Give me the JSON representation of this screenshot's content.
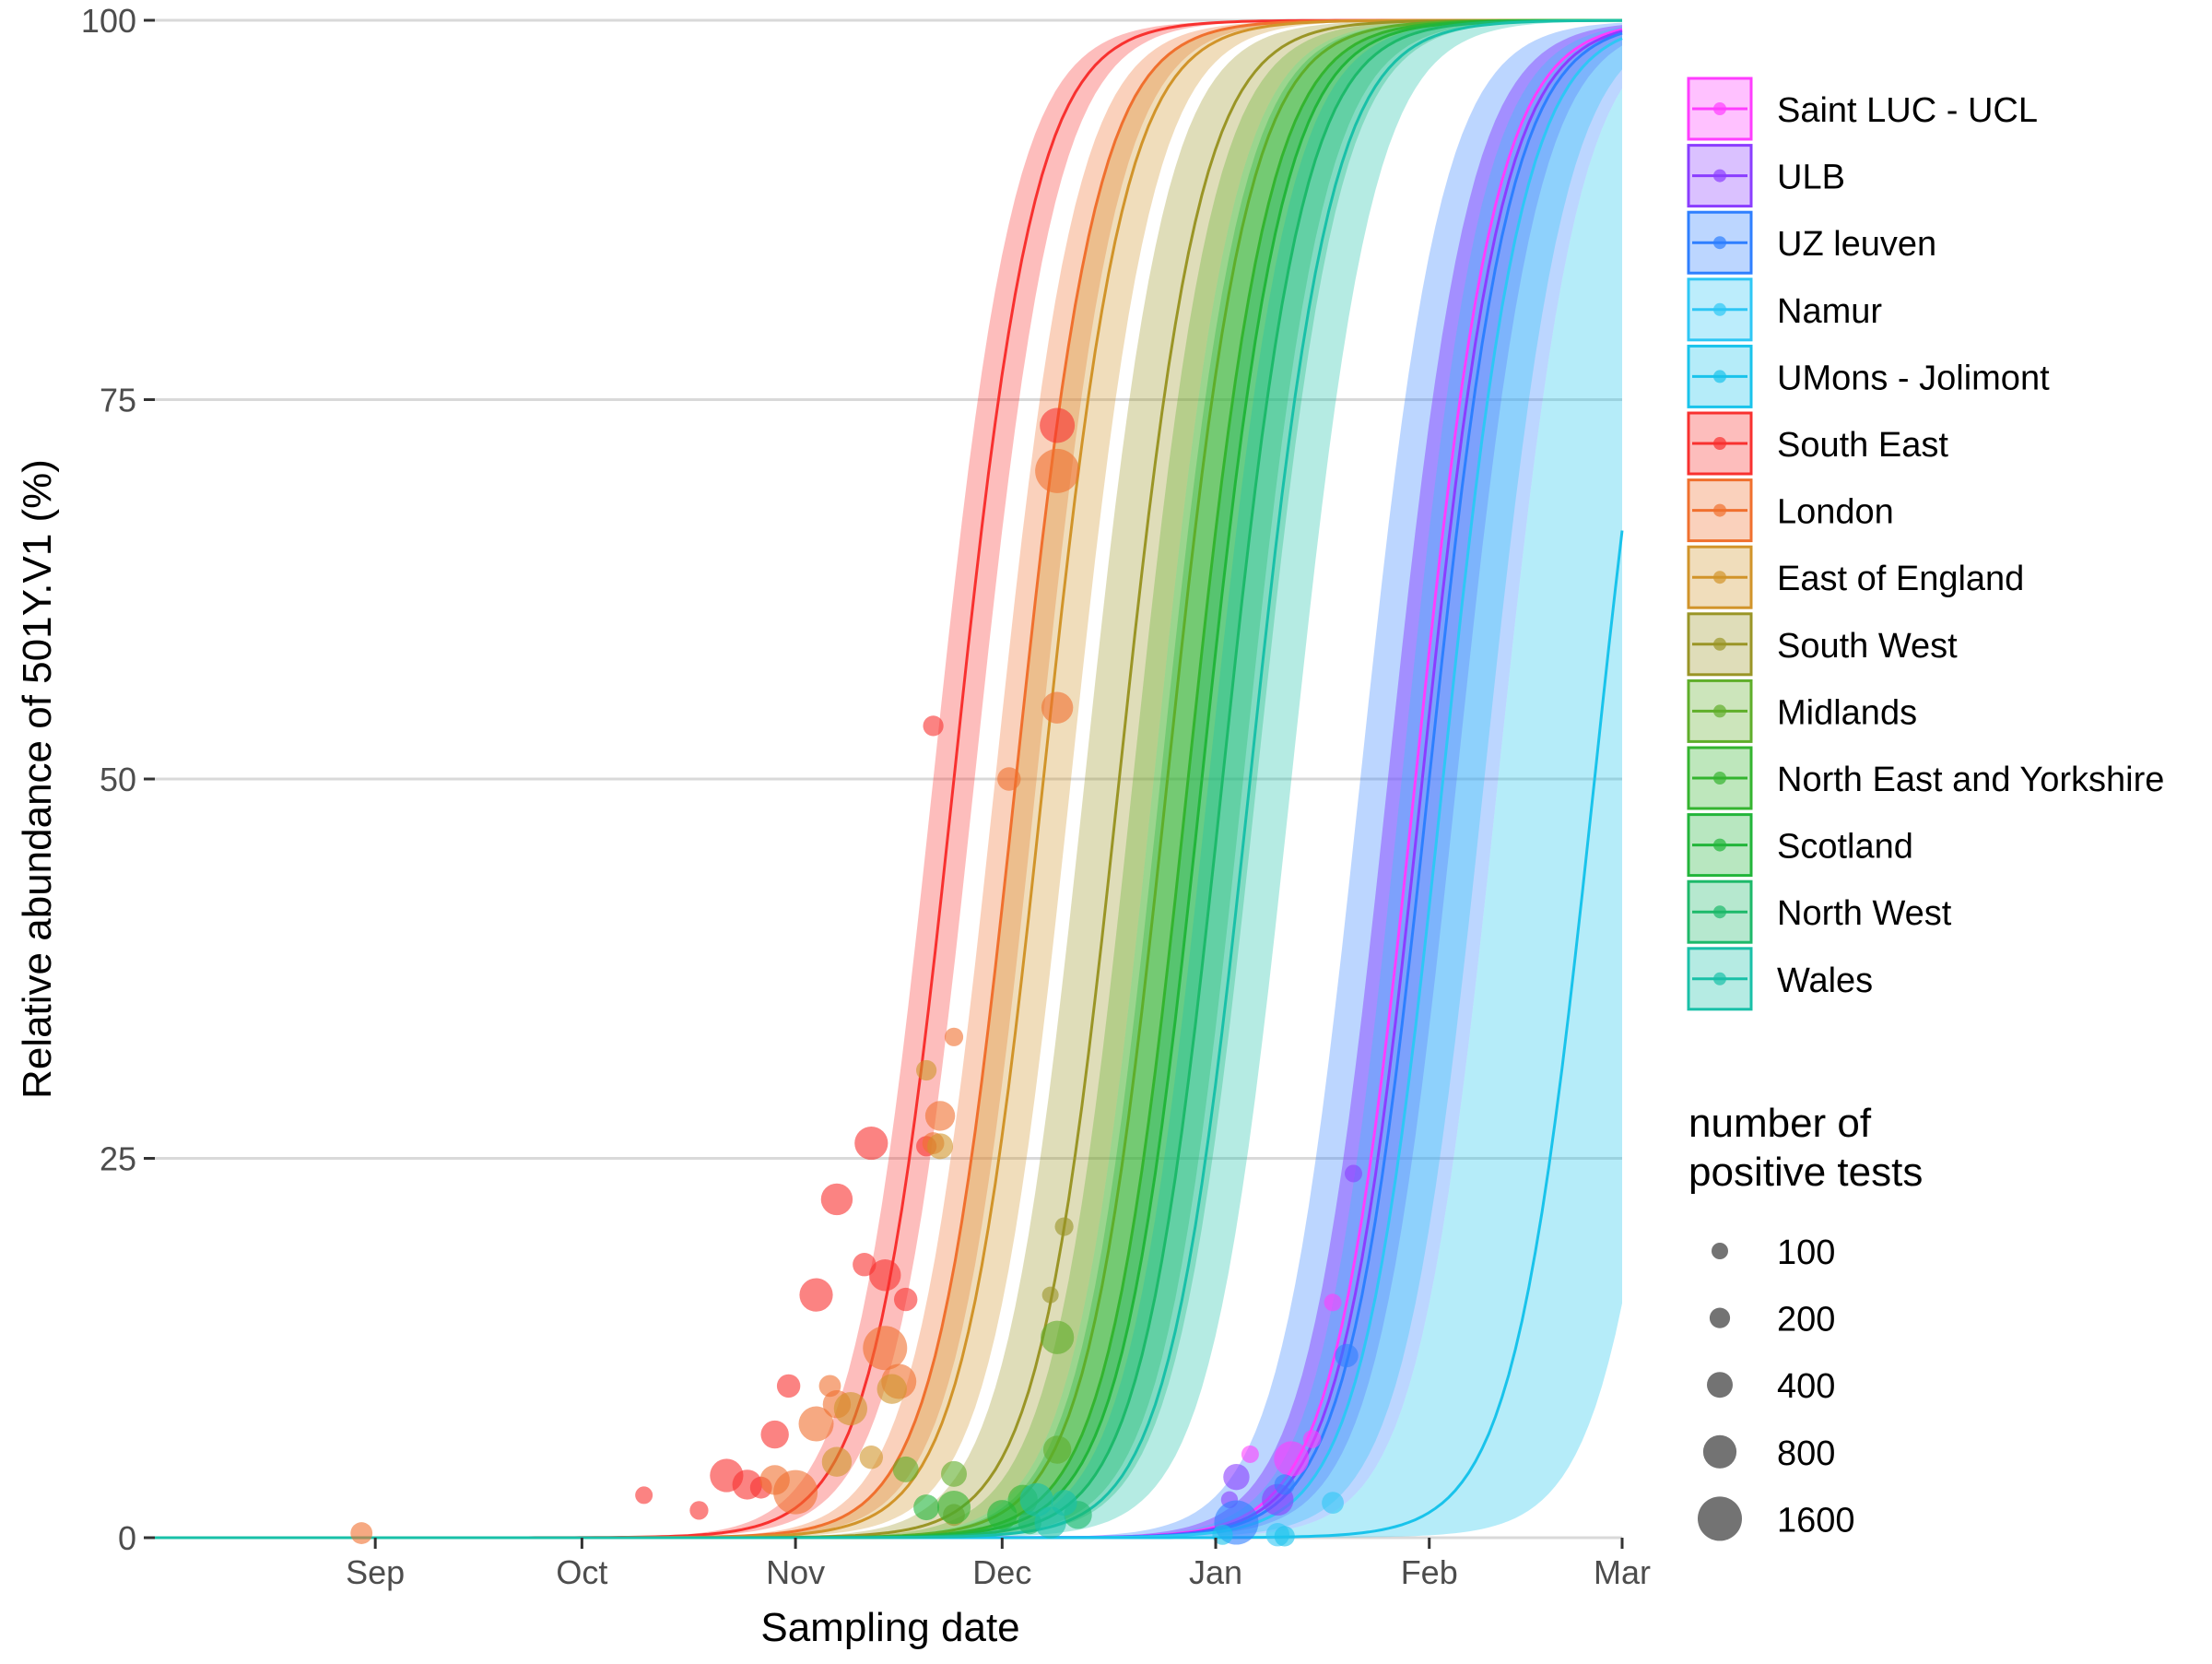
{
  "chart_data": {
    "type": "line",
    "title": "",
    "xlabel": "Sampling date",
    "ylabel": "Relative abundance of 501Y.V1 (%)",
    "x_ticks": [
      "Sep",
      "Oct",
      "Nov",
      "Dec",
      "Jan",
      "Feb",
      "Mar"
    ],
    "x_tick_dates": [
      "2020-09-01",
      "2020-10-01",
      "2020-11-01",
      "2020-12-01",
      "2021-01-01",
      "2021-02-01",
      "2021-03-01"
    ],
    "xlim": [
      "2020-07-31",
      "2021-03-01"
    ],
    "ylim": [
      0,
      100
    ],
    "y_ticks": [
      0,
      25,
      50,
      75,
      100
    ],
    "grid": "horizontal major gridlines",
    "legend_position": "right",
    "size_legend": {
      "title_line1": "number of",
      "title_line2": "positive tests",
      "entries": [
        {
          "label": "100",
          "value": 100
        },
        {
          "label": "200",
          "value": 200
        },
        {
          "label": "400",
          "value": 400
        },
        {
          "label": "800",
          "value": 800
        },
        {
          "label": "1600",
          "value": 1600
        }
      ]
    },
    "series": [
      {
        "name": "Saint LUC - UCL",
        "color": "#FF3DFF",
        "midpoint": "2021-01-30",
        "ci_days": 4,
        "points": [
          [
            "2021-01-06",
            5.5,
            120
          ],
          [
            "2021-01-12",
            5.2,
            900
          ],
          [
            "2021-01-15",
            6.5,
            140
          ],
          [
            "2021-01-18",
            15.5,
            120
          ]
        ]
      },
      {
        "name": "ULB",
        "color": "#8B3DFF",
        "midpoint": "2021-01-31",
        "ci_days": 5,
        "points": [
          [
            "2021-01-03",
            2.5,
            110
          ],
          [
            "2021-01-04",
            4.0,
            420
          ],
          [
            "2021-01-10",
            2.5,
            700
          ],
          [
            "2021-01-21",
            24.0,
            120
          ]
        ]
      },
      {
        "name": "UZ leuven",
        "color": "#2E7FFF",
        "midpoint": "2021-02-01",
        "ci_days": 10,
        "points": [
          [
            "2021-01-04",
            1.0,
            1600
          ],
          [
            "2021-01-11",
            3.5,
            200
          ],
          [
            "2021-01-20",
            12.0,
            300
          ]
        ]
      },
      {
        "name": "Namur",
        "color": "#2EC7F5",
        "midpoint": "2021-02-03",
        "ci_days": 6,
        "points": [
          [
            "2021-01-10",
            0.2,
            300
          ],
          [
            "2021-01-18",
            2.3,
            250
          ]
        ]
      },
      {
        "name": "UMons - Jolimont",
        "color": "#19C3EB",
        "midpoint": "2021-02-25",
        "ci_days": 14,
        "points": [
          [
            "2021-01-02",
            0.2,
            200
          ],
          [
            "2021-01-11",
            0.1,
            200
          ]
        ]
      },
      {
        "name": "South East",
        "color": "#F8312F",
        "midpoint": "2020-11-24",
        "ci_days": 3,
        "points": [
          [
            "2020-10-10",
            2.8,
            120
          ],
          [
            "2020-10-18",
            1.8,
            150
          ],
          [
            "2020-10-22",
            4.1,
            800
          ],
          [
            "2020-10-25",
            3.5,
            600
          ],
          [
            "2020-10-27",
            3.3,
            250
          ],
          [
            "2020-10-29",
            6.8,
            500
          ],
          [
            "2020-10-31",
            10.0,
            300
          ],
          [
            "2020-11-04",
            16.0,
            800
          ],
          [
            "2020-11-07",
            22.3,
            700
          ],
          [
            "2020-11-11",
            18.0,
            300
          ],
          [
            "2020-11-12",
            26.0,
            800
          ],
          [
            "2020-11-14",
            17.3,
            700
          ],
          [
            "2020-11-17",
            15.7,
            300
          ],
          [
            "2020-11-20",
            25.8,
            200
          ],
          [
            "2020-11-21",
            53.5,
            200
          ],
          [
            "2020-12-09",
            73.3,
            900
          ]
        ]
      },
      {
        "name": "London",
        "color": "#F0702E",
        "midpoint": "2020-12-03",
        "ci_days": 3,
        "points": [
          [
            "2020-08-30",
            0.3,
            250
          ],
          [
            "2020-10-29",
            3.8,
            600
          ],
          [
            "2020-11-01",
            3.0,
            1600
          ],
          [
            "2020-11-04",
            7.5,
            900
          ],
          [
            "2020-11-06",
            10.0,
            250
          ],
          [
            "2020-11-07",
            8.8,
            500
          ],
          [
            "2020-11-14",
            12.5,
            1600
          ],
          [
            "2020-11-16",
            10.3,
            900
          ],
          [
            "2020-11-21",
            26.0,
            250
          ],
          [
            "2020-11-22",
            27.8,
            600
          ],
          [
            "2020-11-24",
            33.0,
            150
          ],
          [
            "2020-12-02",
            50.0,
            300
          ],
          [
            "2020-12-09",
            70.3,
            1600
          ],
          [
            "2020-12-09",
            54.7,
            700
          ]
        ]
      },
      {
        "name": "East of England",
        "color": "#D1942A",
        "midpoint": "2020-12-07",
        "ci_days": 4,
        "points": [
          [
            "2020-11-07",
            5.0,
            600
          ],
          [
            "2020-11-09",
            8.5,
            800
          ],
          [
            "2020-11-12",
            5.3,
            300
          ],
          [
            "2020-11-15",
            9.8,
            600
          ],
          [
            "2020-11-20",
            30.8,
            200
          ],
          [
            "2020-11-22",
            25.8,
            400
          ]
        ]
      },
      {
        "name": "South West",
        "color": "#9A9526",
        "midpoint": "2020-12-18",
        "ci_days": 5,
        "points": [
          [
            "2020-11-24",
            1.5,
            250
          ],
          [
            "2020-12-08",
            16.0,
            100
          ],
          [
            "2020-12-10",
            20.5,
            150
          ]
        ]
      },
      {
        "name": "Midlands",
        "color": "#5FAE2A",
        "midpoint": "2020-12-25",
        "ci_days": 5,
        "points": [
          [
            "2020-11-17",
            4.5,
            400
          ],
          [
            "2020-11-24",
            4.2,
            400
          ],
          [
            "2020-12-09",
            13.2,
            800
          ],
          [
            "2020-12-09",
            5.8,
            500
          ]
        ]
      },
      {
        "name": "North East and Yorkshire",
        "color": "#34B42F",
        "midpoint": "2020-12-28",
        "ci_days": 5,
        "points": [
          [
            "2020-11-24",
            2.0,
            800
          ],
          [
            "2020-12-04",
            2.5,
            600
          ]
        ]
      },
      {
        "name": "Scotland",
        "color": "#22B53A",
        "midpoint": "2020-12-30",
        "ci_days": 6,
        "points": [
          [
            "2020-11-20",
            2.0,
            400
          ],
          [
            "2020-12-01",
            1.5,
            600
          ]
        ]
      },
      {
        "name": "North West",
        "color": "#1DB96A",
        "midpoint": "2021-01-02",
        "ci_days": 5,
        "points": [
          [
            "2020-12-05",
            1.0,
            300
          ],
          [
            "2020-12-12",
            1.5,
            500
          ]
        ]
      },
      {
        "name": "Wales",
        "color": "#19C0A8",
        "midpoint": "2021-01-06",
        "ci_days": 6,
        "points": [
          [
            "2020-12-06",
            2.5,
            800
          ],
          [
            "2020-12-08",
            1.0,
            700
          ],
          [
            "2020-12-10",
            2.3,
            400
          ]
        ]
      }
    ]
  }
}
